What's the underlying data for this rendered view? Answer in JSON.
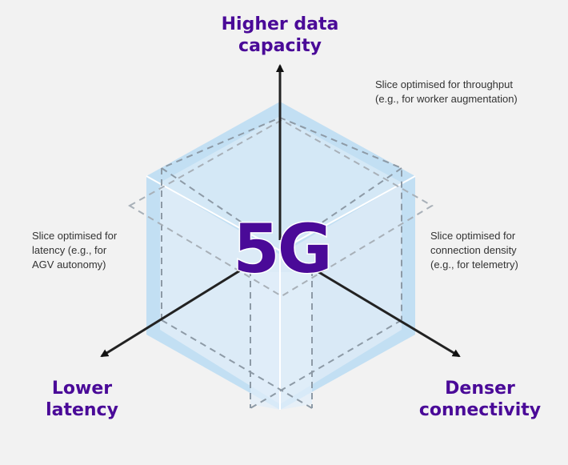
{
  "axes": {
    "up": {
      "label_line1": "Higher data",
      "label_line2": "capacity"
    },
    "left": {
      "label_line1": "Lower",
      "label_line2": "latency"
    },
    "right": {
      "label_line1": "Denser",
      "label_line2": "connectivity"
    }
  },
  "slices": {
    "throughput": {
      "line1": "Slice optimised for throughput",
      "line2": "(e.g., for worker augmentation)"
    },
    "latency": {
      "line1": "Slice optimised for",
      "line2": "latency (e.g., for",
      "line3": "AGV autonomy)"
    },
    "density": {
      "line1": "Slice optimised for",
      "line2": "connection density",
      "line3": "(e.g., for telemetry)"
    }
  },
  "center_label": "5G",
  "colors": {
    "brand": "#4a0a98",
    "cube_outer": "#c2dff3",
    "cube_inner": "#d4e8f6",
    "cube_front": "#e1eef9"
  }
}
